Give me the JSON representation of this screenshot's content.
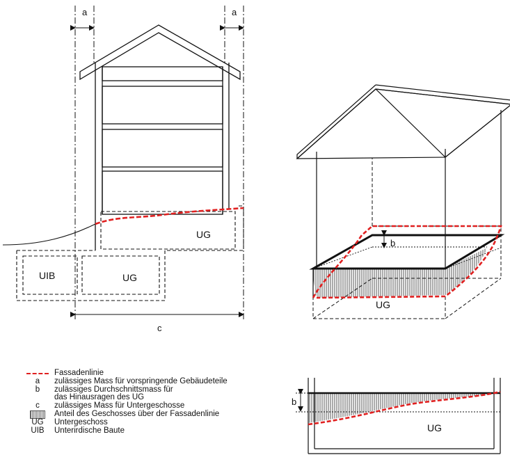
{
  "left_diagram": {
    "label_a_left": "a",
    "label_a_right": "a",
    "label_ug_right": "UG",
    "label_uib": "UIB",
    "label_ug_left": "UG",
    "label_c": "c"
  },
  "perspective_diagram": {
    "label_b": "b",
    "label_ug": "UG"
  },
  "section_diagram": {
    "label_b": "b",
    "label_ug": "UG"
  },
  "legend": {
    "items": [
      {
        "key": "",
        "text": "Fassadenlinie"
      },
      {
        "key": "a",
        "text": "zulässiges Mass für vorspringende Gebäudeteile"
      },
      {
        "key": "b",
        "text": "zulässiges Durchschnittsmass für"
      },
      {
        "key": "",
        "text": "das Hinausragen des UG"
      },
      {
        "key": "c",
        "text": "zulässiges Mass für Untergeschosse"
      },
      {
        "key": "",
        "text": "Anteil des Geschosses über der Fassadenlinie"
      },
      {
        "key": "UG",
        "text": "Untergeschoss"
      },
      {
        "key": "UIB",
        "text": "Unterirdische Baute"
      }
    ]
  },
  "colors": {
    "fassadenlinie": "#e02020",
    "line": "#111111"
  }
}
